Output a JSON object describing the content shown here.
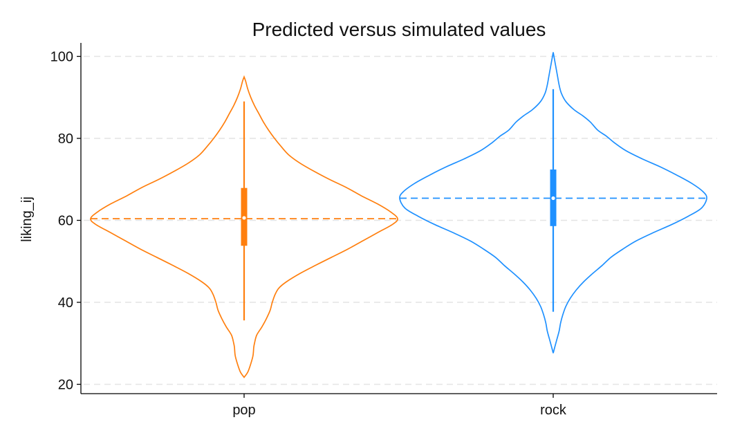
{
  "chart_data": {
    "type": "violin",
    "title": "Predicted versus simulated values",
    "ylabel": "liking_ij",
    "xlabel": "",
    "categories": [
      "pop",
      "rock"
    ],
    "ylim": [
      17.5,
      102
    ],
    "yticks": [
      20,
      40,
      60,
      80,
      100
    ],
    "grid": true,
    "series": [
      {
        "category": "pop",
        "color": "#ff7f0e",
        "mean": 60.4,
        "median": 60.6,
        "q1": 53.8,
        "q3": 67.9,
        "whisker_low": 35.6,
        "whisker_high": 89.0,
        "min": 21.7,
        "max": 95.0,
        "density": [
          [
            21.7,
            0.0
          ],
          [
            23,
            0.05
          ],
          [
            25,
            0.09
          ],
          [
            27,
            0.12
          ],
          [
            29,
            0.13
          ],
          [
            30,
            0.14
          ],
          [
            32,
            0.17
          ],
          [
            34,
            0.24
          ],
          [
            36,
            0.3
          ],
          [
            38,
            0.35
          ],
          [
            40,
            0.38
          ],
          [
            42,
            0.42
          ],
          [
            43.5,
            0.47
          ],
          [
            45,
            0.57
          ],
          [
            47,
            0.75
          ],
          [
            49,
            0.96
          ],
          [
            51,
            1.18
          ],
          [
            53,
            1.4
          ],
          [
            55,
            1.6
          ],
          [
            57,
            1.8
          ],
          [
            59,
            2.0
          ],
          [
            60.4,
            2.07
          ],
          [
            62,
            1.98
          ],
          [
            64,
            1.8
          ],
          [
            66,
            1.58
          ],
          [
            68,
            1.38
          ],
          [
            70,
            1.15
          ],
          [
            72,
            0.94
          ],
          [
            74,
            0.75
          ],
          [
            76,
            0.6
          ],
          [
            78,
            0.5
          ],
          [
            80,
            0.41
          ],
          [
            82,
            0.33
          ],
          [
            84,
            0.26
          ],
          [
            86,
            0.2
          ],
          [
            88,
            0.14
          ],
          [
            90,
            0.09
          ],
          [
            92,
            0.05
          ],
          [
            94,
            0.02
          ],
          [
            95,
            0.0
          ]
        ]
      },
      {
        "category": "rock",
        "color": "#1e90ff",
        "mean": 65.4,
        "median": 65.4,
        "q1": 58.6,
        "q3": 72.4,
        "whisker_low": 37.7,
        "whisker_high": 92.0,
        "min": 27.6,
        "max": 101.0,
        "density": [
          [
            27.6,
            0.0
          ],
          [
            29,
            0.02
          ],
          [
            31,
            0.05
          ],
          [
            33,
            0.08
          ],
          [
            35,
            0.1
          ],
          [
            37,
            0.13
          ],
          [
            39,
            0.17
          ],
          [
            41,
            0.23
          ],
          [
            43,
            0.31
          ],
          [
            45,
            0.41
          ],
          [
            47,
            0.53
          ],
          [
            49,
            0.66
          ],
          [
            51,
            0.78
          ],
          [
            53,
            0.94
          ],
          [
            55,
            1.12
          ],
          [
            57,
            1.35
          ],
          [
            59,
            1.6
          ],
          [
            61,
            1.82
          ],
          [
            63,
            2.0
          ],
          [
            65.4,
            2.07
          ],
          [
            67,
            2.02
          ],
          [
            69,
            1.87
          ],
          [
            71,
            1.67
          ],
          [
            73,
            1.45
          ],
          [
            75,
            1.2
          ],
          [
            77,
            0.98
          ],
          [
            79,
            0.82
          ],
          [
            80.5,
            0.72
          ],
          [
            82,
            0.6
          ],
          [
            84,
            0.5
          ],
          [
            85.5,
            0.4
          ],
          [
            87,
            0.28
          ],
          [
            89,
            0.17
          ],
          [
            91,
            0.11
          ],
          [
            93,
            0.08
          ],
          [
            95,
            0.06
          ],
          [
            97,
            0.04
          ],
          [
            99,
            0.02
          ],
          [
            101,
            0.0
          ]
        ]
      }
    ]
  }
}
